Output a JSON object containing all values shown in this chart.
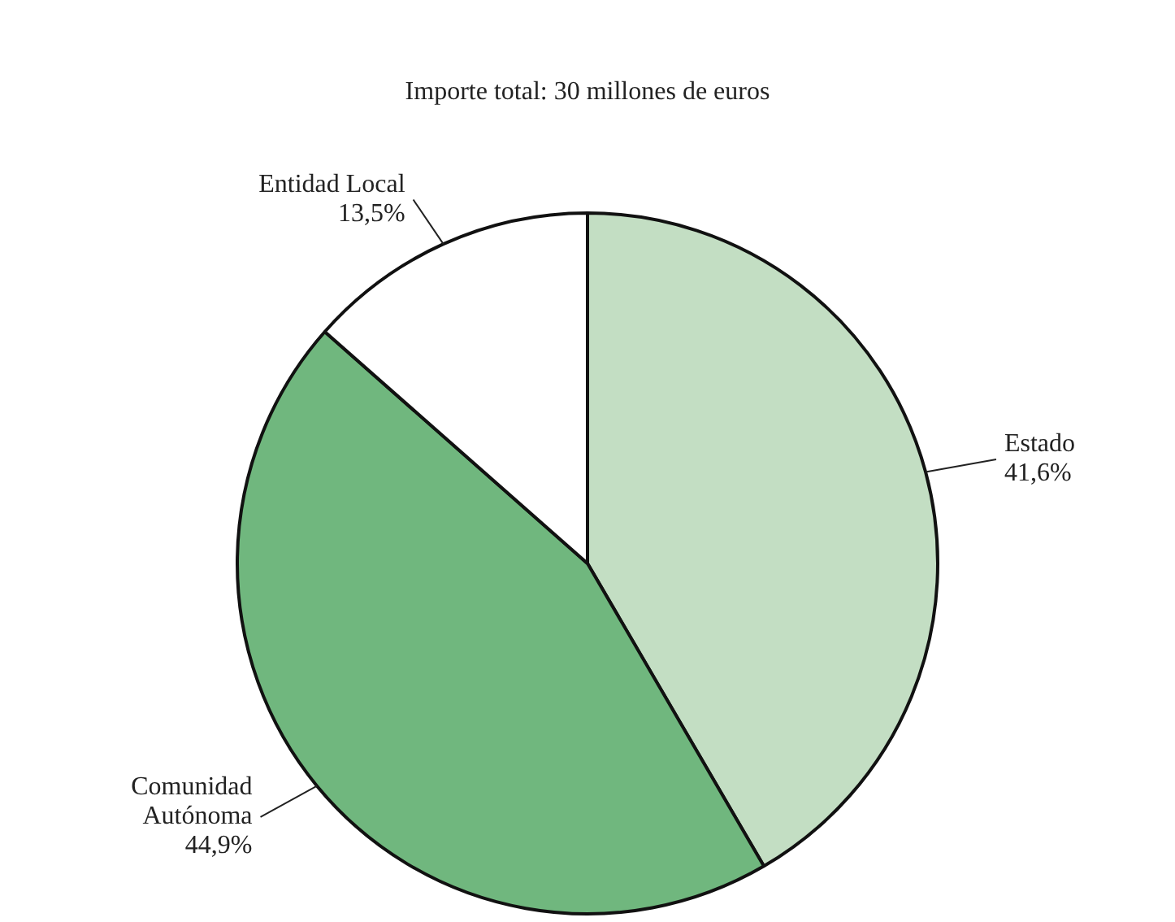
{
  "chart_data": {
    "type": "pie",
    "title": "Importe total: 30 millones de euros",
    "categories": [
      "Estado",
      "Comunidad Autónoma",
      "Entidad Local"
    ],
    "values": [
      41.6,
      44.9,
      13.5
    ],
    "colors": [
      "#c3dec3",
      "#70b77e",
      "#ffffff"
    ],
    "value_labels": [
      "41,6%",
      "44,9%",
      "13,5%"
    ],
    "legend": false
  }
}
